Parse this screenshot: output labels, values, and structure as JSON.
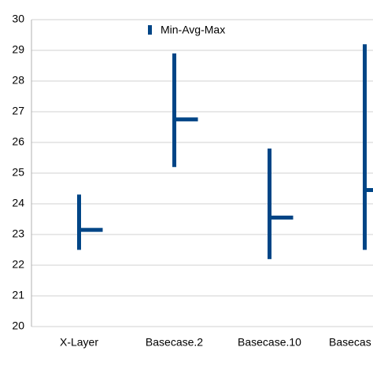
{
  "chart_data": {
    "type": "range",
    "categories": [
      "X-Layer",
      "Basecase.2",
      "Basecase.10",
      "Basecas"
    ],
    "series": [
      {
        "name": "Min-Avg-Max",
        "color": "#004586",
        "min": [
          22.5,
          25.2,
          22.2,
          22.5
        ],
        "avg": [
          23.15,
          26.75,
          23.55,
          24.45
        ],
        "max": [
          24.3,
          28.9,
          25.8,
          29.2
        ]
      }
    ],
    "ylim": [
      20,
      30
    ],
    "yticks": [
      20,
      21,
      22,
      23,
      24,
      25,
      26,
      27,
      28,
      29,
      30
    ],
    "grid": true
  }
}
